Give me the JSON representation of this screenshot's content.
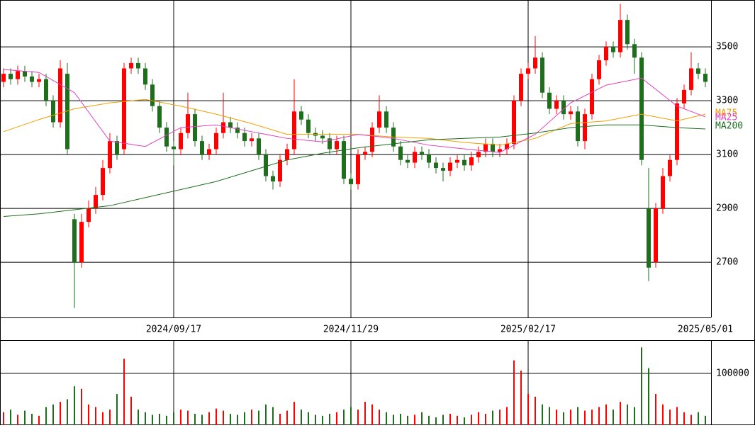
{
  "chart_data": {
    "type": "candlestick",
    "categories": [
      null,
      null,
      null,
      null,
      null,
      null,
      null,
      null,
      null,
      null,
      null,
      null,
      null,
      null,
      null,
      null,
      null,
      null,
      null,
      null,
      null,
      null,
      null,
      null,
      "2024/09/17",
      null,
      null,
      null,
      null,
      null,
      null,
      null,
      null,
      null,
      null,
      null,
      null,
      null,
      null,
      null,
      null,
      null,
      null,
      null,
      null,
      null,
      null,
      null,
      null,
      "2024/11/29",
      null,
      null,
      null,
      null,
      null,
      null,
      null,
      null,
      null,
      null,
      null,
      null,
      null,
      null,
      null,
      null,
      null,
      null,
      null,
      null,
      null,
      null,
      null,
      null,
      "2025/02/17",
      null,
      null,
      null,
      null,
      null,
      null,
      null,
      null,
      null,
      null,
      null,
      null,
      null,
      null,
      null,
      null,
      null,
      null,
      null,
      null,
      null,
      null,
      null,
      null,
      "2025/05/01"
    ],
    "open": [
      3370,
      3400,
      3380,
      3410,
      3390,
      3370,
      3380,
      3300,
      3220,
      3400,
      2860,
      2700,
      2850,
      2900,
      2950,
      3050,
      3150,
      3120,
      3420,
      3440,
      3420,
      3360,
      3280,
      3200,
      3130,
      3120,
      3180,
      3250,
      3150,
      3100,
      3120,
      3180,
      3220,
      3200,
      3180,
      3150,
      3160,
      3100,
      3020,
      3000,
      3080,
      3120,
      3260,
      3230,
      3180,
      3170,
      3160,
      3120,
      3150,
      3010,
      2990,
      3100,
      3110,
      3200,
      3260,
      3200,
      3130,
      3080,
      3070,
      3110,
      3100,
      3070,
      3050,
      3040,
      3070,
      3080,
      3060,
      3090,
      3110,
      3140,
      3110,
      3120,
      3140,
      3300,
      3400,
      3420,
      3460,
      3330,
      3270,
      3300,
      3250,
      3260,
      3150,
      3250,
      3380,
      3450,
      3500,
      3480,
      3600,
      3510,
      3460,
      2900,
      2700,
      2900,
      3020,
      3080,
      3290,
      3340,
      3420,
      3400
    ],
    "high": [
      3420,
      3420,
      3430,
      3430,
      3410,
      3400,
      3400,
      3320,
      3450,
      3440,
      2880,
      2880,
      2930,
      2980,
      3080,
      3180,
      3170,
      3440,
      3460,
      3460,
      3440,
      3380,
      3300,
      3220,
      3150,
      3200,
      3330,
      3270,
      3170,
      3140,
      3200,
      3330,
      3240,
      3220,
      3200,
      3180,
      3180,
      3120,
      3040,
      3100,
      3140,
      3380,
      3280,
      3250,
      3200,
      3190,
      3180,
      3170,
      3170,
      3030,
      3120,
      3130,
      3220,
      3320,
      3280,
      3220,
      3150,
      3100,
      3130,
      3130,
      3120,
      3090,
      3070,
      3090,
      3100,
      3100,
      3110,
      3130,
      3160,
      3160,
      3140,
      3160,
      3320,
      3420,
      3440,
      3540,
      3480,
      3350,
      3320,
      3320,
      3280,
      3280,
      3270,
      3400,
      3470,
      3520,
      3520,
      3660,
      3620,
      3530,
      3480,
      3050,
      2920,
      3050,
      3100,
      3310,
      3360,
      3480,
      3440,
      3420
    ],
    "low": [
      3350,
      3360,
      3360,
      3370,
      3350,
      3350,
      3280,
      3200,
      3200,
      3100,
      2530,
      2680,
      2830,
      2880,
      2930,
      3030,
      3080,
      3100,
      3400,
      3400,
      3340,
      3260,
      3180,
      3110,
      3060,
      3100,
      3160,
      3130,
      3080,
      3080,
      3100,
      3160,
      3180,
      3160,
      3130,
      3130,
      3080,
      3000,
      2970,
      2980,
      3060,
      3100,
      3210,
      3160,
      3150,
      3140,
      3100,
      3100,
      2990,
      2970,
      2970,
      3080,
      3090,
      3180,
      3180,
      3110,
      3060,
      3050,
      3050,
      3080,
      3050,
      3030,
      3000,
      3020,
      3050,
      3040,
      3040,
      3070,
      3090,
      3090,
      3090,
      3100,
      3120,
      3280,
      3380,
      3400,
      3310,
      3250,
      3250,
      3230,
      3230,
      3130,
      3120,
      3230,
      3360,
      3430,
      3460,
      3460,
      3490,
      3400,
      3060,
      2630,
      2680,
      2880,
      3000,
      3060,
      3270,
      3320,
      3380,
      3350
    ],
    "close": [
      3400,
      3380,
      3410,
      3390,
      3370,
      3380,
      3300,
      3220,
      3420,
      3120,
      2700,
      2850,
      2900,
      2950,
      3050,
      3150,
      3100,
      3420,
      3440,
      3420,
      3360,
      3280,
      3200,
      3130,
      3120,
      3180,
      3250,
      3150,
      3100,
      3120,
      3180,
      3220,
      3200,
      3180,
      3150,
      3160,
      3100,
      3020,
      3000,
      3080,
      3120,
      3260,
      3230,
      3180,
      3170,
      3160,
      3120,
      3150,
      3010,
      2990,
      3100,
      3110,
      3200,
      3260,
      3200,
      3130,
      3080,
      3070,
      3110,
      3100,
      3070,
      3050,
      3040,
      3070,
      3080,
      3060,
      3090,
      3110,
      3140,
      3110,
      3120,
      3140,
      3300,
      3400,
      3420,
      3460,
      3330,
      3270,
      3300,
      3250,
      3260,
      3150,
      3250,
      3380,
      3450,
      3500,
      3480,
      3600,
      3510,
      3460,
      3080,
      2680,
      2900,
      3020,
      3080,
      3290,
      3340,
      3420,
      3400,
      3370
    ],
    "up_color": "#ff0000",
    "down_color": "#1e6e1e",
    "ylim": [
      2495,
      3674
    ],
    "yticks": [
      2700,
      2900,
      3100,
      3300,
      3500
    ],
    "moving_averages": [
      {
        "name": "MA75",
        "color": "#f0a000",
        "x": [
          0,
          5,
          10,
          15,
          20,
          25,
          30,
          35,
          40,
          45,
          50,
          55,
          60,
          65,
          70,
          75,
          80,
          85,
          90,
          95,
          99
        ],
        "values": [
          3185,
          3230,
          3270,
          3292,
          3305,
          3280,
          3250,
          3215,
          3175,
          3175,
          3175,
          3165,
          3160,
          3145,
          3135,
          3160,
          3215,
          3225,
          3250,
          3225,
          3250
        ]
      },
      {
        "name": "MA25",
        "color": "#e040c0",
        "x": [
          0,
          5,
          10,
          15,
          20,
          25,
          30,
          35,
          40,
          45,
          50,
          55,
          60,
          65,
          70,
          75,
          80,
          85,
          90,
          95,
          99
        ],
        "values": [
          3416,
          3405,
          3330,
          3150,
          3130,
          3200,
          3210,
          3185,
          3160,
          3147,
          3175,
          3160,
          3135,
          3121,
          3108,
          3175,
          3292,
          3358,
          3384,
          3280,
          3240
        ]
      },
      {
        "name": "MA200",
        "color": "#1e6e1e",
        "x": [
          0,
          5,
          10,
          15,
          20,
          25,
          30,
          35,
          40,
          45,
          50,
          55,
          60,
          65,
          70,
          75,
          80,
          85,
          90,
          95,
          99
        ],
        "values": [
          2870,
          2880,
          2895,
          2910,
          2940,
          2970,
          3000,
          3040,
          3080,
          3105,
          3125,
          3140,
          3155,
          3160,
          3165,
          3180,
          3200,
          3210,
          3210,
          3200,
          3195
        ]
      }
    ],
    "volume": [
      25000,
      30000,
      20000,
      28000,
      22000,
      18000,
      35000,
      40000,
      45000,
      50000,
      75000,
      70000,
      40000,
      35000,
      25000,
      30000,
      60000,
      128000,
      55000,
      30000,
      25000,
      20000,
      22000,
      18000,
      25000,
      30000,
      28000,
      22000,
      20000,
      25000,
      32000,
      28000,
      22000,
      20000,
      25000,
      30000,
      28000,
      40000,
      35000,
      22000,
      28000,
      45000,
      30000,
      25000,
      20000,
      18000,
      22000,
      25000,
      30000,
      35000,
      30000,
      45000,
      40000,
      30000,
      25000,
      20000,
      22000,
      18000,
      20000,
      25000,
      18000,
      15000,
      20000,
      22000,
      18000,
      15000,
      20000,
      25000,
      22000,
      28000,
      30000,
      35000,
      125000,
      105000,
      60000,
      55000,
      40000,
      35000,
      30000,
      25000,
      30000,
      35000,
      28000,
      30000,
      35000,
      40000,
      30000,
      45000,
      40000,
      35000,
      150000,
      110000,
      60000,
      40000,
      30000,
      35000,
      25000,
      20000,
      25000,
      18000
    ],
    "vlim": [
      0,
      164000
    ],
    "vticks": [
      100000
    ],
    "grid": true
  }
}
